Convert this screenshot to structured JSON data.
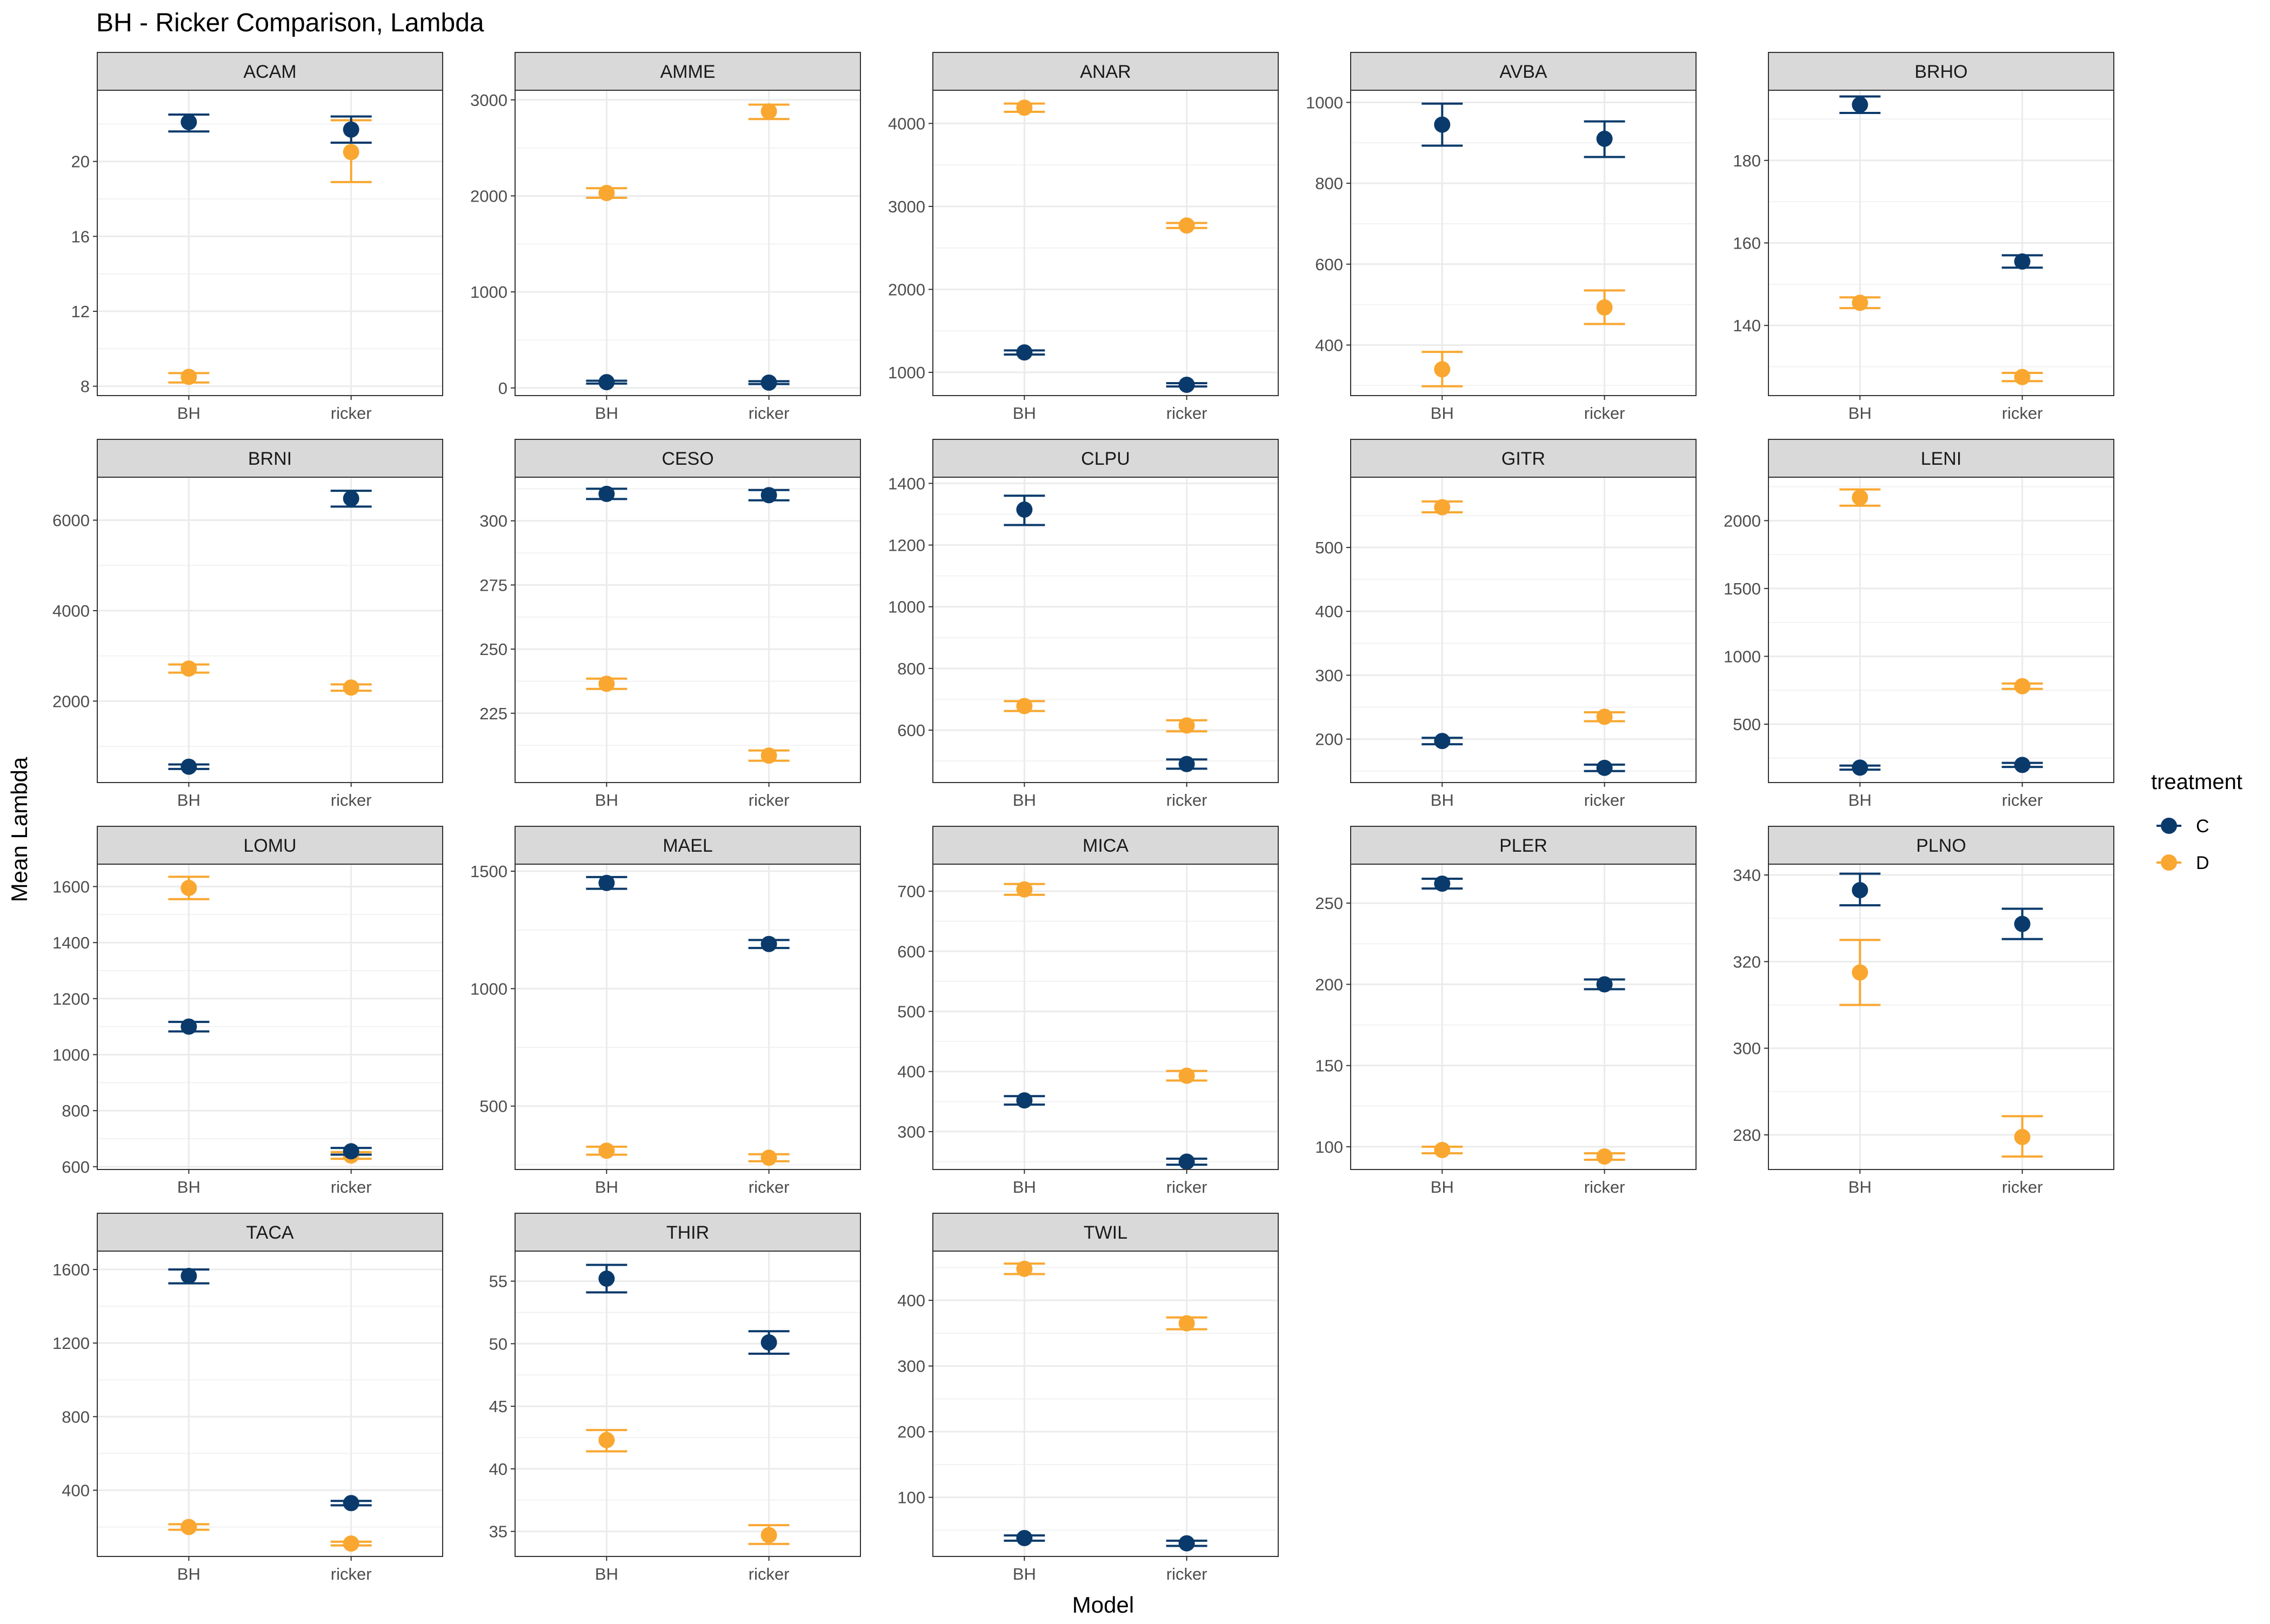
{
  "title": "BH - Ricker Comparison, Lambda",
  "x_axis_title": "Model",
  "y_axis_title": "Mean Lambda",
  "legend": {
    "title": "treatment",
    "items": [
      {
        "label": "C",
        "color": "#0a3a6b"
      },
      {
        "label": "D",
        "color": "#f9a730"
      }
    ]
  },
  "chart_data": {
    "type": "scatter",
    "subtype": "point-range faceted",
    "categories": [
      "BH",
      "ricker"
    ],
    "series_colors": {
      "C": "#0a3a6b",
      "D": "#f9a730"
    },
    "facets": [
      {
        "name": "ACAM",
        "ylim": [
          7.5,
          23.8
        ],
        "ticks": [
          8,
          12,
          16,
          20
        ],
        "points": [
          {
            "model": "BH",
            "treatment": "C",
            "y": 22.1,
            "lo": 21.6,
            "hi": 22.5
          },
          {
            "model": "BH",
            "treatment": "D",
            "y": 8.5,
            "lo": 8.2,
            "hi": 8.7
          },
          {
            "model": "ricker",
            "treatment": "C",
            "y": 21.7,
            "lo": 21.0,
            "hi": 22.4
          },
          {
            "model": "ricker",
            "treatment": "D",
            "y": 20.5,
            "lo": 18.9,
            "hi": 22.2
          }
        ]
      },
      {
        "name": "AMME",
        "ylim": [
          -80,
          3100
        ],
        "ticks": [
          0,
          1000,
          2000,
          3000
        ],
        "points": [
          {
            "model": "BH",
            "treatment": "C",
            "y": 60,
            "lo": 45,
            "hi": 75
          },
          {
            "model": "BH",
            "treatment": "D",
            "y": 2030,
            "lo": 1980,
            "hi": 2080
          },
          {
            "model": "ricker",
            "treatment": "C",
            "y": 55,
            "lo": 40,
            "hi": 70
          },
          {
            "model": "ricker",
            "treatment": "D",
            "y": 2880,
            "lo": 2800,
            "hi": 2950
          }
        ]
      },
      {
        "name": "ANAR",
        "ylim": [
          720,
          4400
        ],
        "ticks": [
          1000,
          2000,
          3000,
          4000
        ],
        "points": [
          {
            "model": "BH",
            "treatment": "C",
            "y": 1240,
            "lo": 1215,
            "hi": 1265
          },
          {
            "model": "BH",
            "treatment": "D",
            "y": 4190,
            "lo": 4140,
            "hi": 4240
          },
          {
            "model": "ricker",
            "treatment": "C",
            "y": 850,
            "lo": 830,
            "hi": 870
          },
          {
            "model": "ricker",
            "treatment": "D",
            "y": 2770,
            "lo": 2740,
            "hi": 2800
          }
        ]
      },
      {
        "name": "AVBA",
        "ylim": [
          275,
          1030
        ],
        "ticks": [
          400,
          600,
          800,
          1000
        ],
        "points": [
          {
            "model": "BH",
            "treatment": "C",
            "y": 945,
            "lo": 893,
            "hi": 997
          },
          {
            "model": "BH",
            "treatment": "D",
            "y": 340,
            "lo": 298,
            "hi": 383
          },
          {
            "model": "ricker",
            "treatment": "C",
            "y": 910,
            "lo": 865,
            "hi": 953
          },
          {
            "model": "ricker",
            "treatment": "D",
            "y": 493,
            "lo": 452,
            "hi": 535
          }
        ]
      },
      {
        "name": "BRHO",
        "ylim": [
          123,
          197
        ],
        "ticks": [
          140,
          160,
          180
        ],
        "points": [
          {
            "model": "BH",
            "treatment": "C",
            "y": 193.5,
            "lo": 191.5,
            "hi": 195.5
          },
          {
            "model": "BH",
            "treatment": "D",
            "y": 145.5,
            "lo": 144.2,
            "hi": 146.8
          },
          {
            "model": "ricker",
            "treatment": "C",
            "y": 155.5,
            "lo": 154.0,
            "hi": 157.0
          },
          {
            "model": "ricker",
            "treatment": "D",
            "y": 127.5,
            "lo": 126.5,
            "hi": 128.5
          }
        ]
      },
      {
        "name": "BRNI",
        "ylim": [
          200,
          6950
        ],
        "ticks": [
          2000,
          4000,
          6000
        ],
        "points": [
          {
            "model": "BH",
            "treatment": "C",
            "y": 550,
            "lo": 500,
            "hi": 600
          },
          {
            "model": "BH",
            "treatment": "D",
            "y": 2720,
            "lo": 2630,
            "hi": 2810
          },
          {
            "model": "ricker",
            "treatment": "C",
            "y": 6480,
            "lo": 6300,
            "hi": 6650
          },
          {
            "model": "ricker",
            "treatment": "D",
            "y": 2300,
            "lo": 2230,
            "hi": 2370
          }
        ]
      },
      {
        "name": "CESO",
        "ylim": [
          198,
          317
        ],
        "ticks": [
          225,
          250,
          275,
          300
        ],
        "points": [
          {
            "model": "BH",
            "treatment": "C",
            "y": 310.5,
            "lo": 308.5,
            "hi": 312.5
          },
          {
            "model": "BH",
            "treatment": "D",
            "y": 236.5,
            "lo": 234.5,
            "hi": 238.5
          },
          {
            "model": "ricker",
            "treatment": "C",
            "y": 310.0,
            "lo": 308.0,
            "hi": 312.0
          },
          {
            "model": "ricker",
            "treatment": "D",
            "y": 208.5,
            "lo": 206.5,
            "hi": 210.5
          }
        ]
      },
      {
        "name": "CLPU",
        "ylim": [
          430,
          1420
        ],
        "ticks": [
          600,
          800,
          1000,
          1200,
          1400
        ],
        "points": [
          {
            "model": "BH",
            "treatment": "C",
            "y": 1315,
            "lo": 1265,
            "hi": 1360
          },
          {
            "model": "BH",
            "treatment": "D",
            "y": 678,
            "lo": 662,
            "hi": 694
          },
          {
            "model": "ricker",
            "treatment": "C",
            "y": 490,
            "lo": 475,
            "hi": 505
          },
          {
            "model": "ricker",
            "treatment": "D",
            "y": 615,
            "lo": 596,
            "hi": 632
          }
        ]
      },
      {
        "name": "GITR",
        "ylim": [
          132,
          610
        ],
        "ticks": [
          200,
          300,
          400,
          500
        ],
        "points": [
          {
            "model": "BH",
            "treatment": "C",
            "y": 197,
            "lo": 192,
            "hi": 202
          },
          {
            "model": "BH",
            "treatment": "D",
            "y": 563,
            "lo": 555,
            "hi": 572
          },
          {
            "model": "ricker",
            "treatment": "C",
            "y": 155,
            "lo": 150,
            "hi": 160
          },
          {
            "model": "ricker",
            "treatment": "D",
            "y": 235,
            "lo": 228,
            "hi": 242
          }
        ]
      },
      {
        "name": "LENI",
        "ylim": [
          70,
          2320
        ],
        "ticks": [
          500,
          1000,
          1500,
          2000
        ],
        "points": [
          {
            "model": "BH",
            "treatment": "C",
            "y": 180,
            "lo": 165,
            "hi": 195
          },
          {
            "model": "BH",
            "treatment": "D",
            "y": 2170,
            "lo": 2110,
            "hi": 2230
          },
          {
            "model": "ricker",
            "treatment": "C",
            "y": 200,
            "lo": 185,
            "hi": 215
          },
          {
            "model": "ricker",
            "treatment": "D",
            "y": 780,
            "lo": 760,
            "hi": 800
          }
        ]
      },
      {
        "name": "LOMU",
        "ylim": [
          590,
          1680
        ],
        "ticks": [
          600,
          800,
          1000,
          1200,
          1400,
          1600
        ],
        "points": [
          {
            "model": "BH",
            "treatment": "C",
            "y": 1100,
            "lo": 1083,
            "hi": 1117
          },
          {
            "model": "BH",
            "treatment": "D",
            "y": 1595,
            "lo": 1555,
            "hi": 1635
          },
          {
            "model": "ricker",
            "treatment": "C",
            "y": 655,
            "lo": 643,
            "hi": 667
          },
          {
            "model": "ricker",
            "treatment": "D",
            "y": 640,
            "lo": 628,
            "hi": 652
          }
        ]
      },
      {
        "name": "MAEL",
        "ylim": [
          230,
          1530
        ],
        "ticks": [
          500,
          1000,
          1500
        ],
        "points": [
          {
            "model": "BH",
            "treatment": "C",
            "y": 1450,
            "lo": 1425,
            "hi": 1475
          },
          {
            "model": "BH",
            "treatment": "D",
            "y": 310,
            "lo": 293,
            "hi": 327
          },
          {
            "model": "ricker",
            "treatment": "C",
            "y": 1190,
            "lo": 1173,
            "hi": 1207
          },
          {
            "model": "ricker",
            "treatment": "D",
            "y": 280,
            "lo": 265,
            "hi": 295
          }
        ]
      },
      {
        "name": "MICA",
        "ylim": [
          237,
          745
        ],
        "ticks": [
          300,
          400,
          500,
          600,
          700
        ],
        "points": [
          {
            "model": "BH",
            "treatment": "C",
            "y": 352,
            "lo": 345,
            "hi": 359
          },
          {
            "model": "BH",
            "treatment": "D",
            "y": 703,
            "lo": 694,
            "hi": 712
          },
          {
            "model": "ricker",
            "treatment": "C",
            "y": 250,
            "lo": 245,
            "hi": 255
          },
          {
            "model": "ricker",
            "treatment": "D",
            "y": 393,
            "lo": 385,
            "hi": 401
          }
        ]
      },
      {
        "name": "PLER",
        "ylim": [
          86,
          274
        ],
        "ticks": [
          100,
          150,
          200,
          250
        ],
        "points": [
          {
            "model": "BH",
            "treatment": "C",
            "y": 262,
            "lo": 259,
            "hi": 265
          },
          {
            "model": "BH",
            "treatment": "D",
            "y": 98,
            "lo": 96,
            "hi": 100
          },
          {
            "model": "ricker",
            "treatment": "C",
            "y": 200,
            "lo": 197,
            "hi": 203
          },
          {
            "model": "ricker",
            "treatment": "D",
            "y": 94,
            "lo": 92,
            "hi": 96
          }
        ]
      },
      {
        "name": "PLNO",
        "ylim": [
          272,
          342.5
        ],
        "ticks": [
          280,
          300,
          320,
          340
        ],
        "points": [
          {
            "model": "BH",
            "treatment": "C",
            "y": 336.5,
            "lo": 333,
            "hi": 340.3
          },
          {
            "model": "BH",
            "treatment": "D",
            "y": 317.5,
            "lo": 310,
            "hi": 325
          },
          {
            "model": "ricker",
            "treatment": "C",
            "y": 328.7,
            "lo": 325.2,
            "hi": 332.2
          },
          {
            "model": "ricker",
            "treatment": "D",
            "y": 279.5,
            "lo": 275,
            "hi": 284.3
          }
        ]
      },
      {
        "name": "TACA",
        "ylim": [
          40,
          1700
        ],
        "ticks": [
          400,
          800,
          1200,
          1600
        ],
        "points": [
          {
            "model": "BH",
            "treatment": "C",
            "y": 1565,
            "lo": 1525,
            "hi": 1600
          },
          {
            "model": "BH",
            "treatment": "D",
            "y": 200,
            "lo": 185,
            "hi": 215
          },
          {
            "model": "ricker",
            "treatment": "C",
            "y": 330,
            "lo": 318,
            "hi": 342
          },
          {
            "model": "ricker",
            "treatment": "D",
            "y": 110,
            "lo": 100,
            "hi": 120
          }
        ]
      },
      {
        "name": "THIR",
        "ylim": [
          33.0,
          57.4
        ],
        "ticks": [
          35,
          40,
          45,
          50,
          55
        ],
        "points": [
          {
            "model": "BH",
            "treatment": "C",
            "y": 55.2,
            "lo": 54.1,
            "hi": 56.3
          },
          {
            "model": "BH",
            "treatment": "D",
            "y": 42.3,
            "lo": 41.4,
            "hi": 43.1
          },
          {
            "model": "ricker",
            "treatment": "C",
            "y": 50.1,
            "lo": 49.2,
            "hi": 51.0
          },
          {
            "model": "ricker",
            "treatment": "D",
            "y": 34.7,
            "lo": 34.0,
            "hi": 35.5
          }
        ]
      },
      {
        "name": "TWIL",
        "ylim": [
          10,
          475
        ],
        "ticks": [
          100,
          200,
          300,
          400
        ],
        "points": [
          {
            "model": "BH",
            "treatment": "C",
            "y": 38,
            "lo": 34,
            "hi": 42
          },
          {
            "model": "BH",
            "treatment": "D",
            "y": 448,
            "lo": 440,
            "hi": 456
          },
          {
            "model": "ricker",
            "treatment": "C",
            "y": 30,
            "lo": 26,
            "hi": 34
          },
          {
            "model": "ricker",
            "treatment": "D",
            "y": 365,
            "lo": 356,
            "hi": 374
          }
        ]
      }
    ]
  }
}
